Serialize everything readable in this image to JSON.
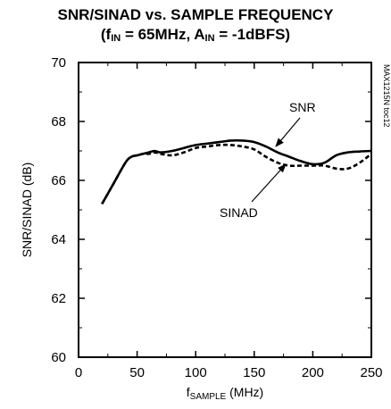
{
  "chart_data": {
    "type": "line",
    "title_line1": "SNR/SINAD vs. SAMPLE FREQUENCY",
    "title_line2": {
      "open": "(f",
      "fin_sub": "IN",
      "mid": " = 65MHz, A",
      "ain_sub": "IN",
      "close": " = -1dBFS)"
    },
    "xlabel": {
      "f": "f",
      "sub": "SAMPLE",
      "unit": " (MHz)"
    },
    "ylabel": "SNR/SINAD (dB)",
    "xlim": [
      0,
      250
    ],
    "ylim": [
      60,
      70
    ],
    "x_ticks": [
      "0",
      "50",
      "100",
      "150",
      "200",
      "250"
    ],
    "y_ticks": [
      "60",
      "62",
      "64",
      "66",
      "68",
      "70"
    ],
    "watermark": "MAX1215N toc12",
    "series": [
      {
        "name": "SNR",
        "style": "solid",
        "x": [
          20,
          30,
          40,
          45,
          50,
          55,
          60,
          65,
          70,
          80,
          90,
          100,
          110,
          120,
          130,
          140,
          150,
          160,
          170,
          180,
          190,
          200,
          210,
          220,
          230,
          240,
          250
        ],
        "y": [
          65.2,
          65.9,
          66.6,
          66.8,
          66.85,
          66.9,
          66.95,
          67.0,
          66.95,
          67.0,
          67.1,
          67.2,
          67.25,
          67.3,
          67.35,
          67.35,
          67.3,
          67.15,
          66.95,
          66.8,
          66.65,
          66.55,
          66.6,
          66.85,
          66.95,
          66.98,
          67.0
        ]
      },
      {
        "name": "SINAD",
        "style": "dashed",
        "x": [
          20,
          30,
          40,
          45,
          50,
          55,
          60,
          65,
          70,
          80,
          90,
          100,
          110,
          120,
          130,
          140,
          150,
          160,
          170,
          180,
          190,
          200,
          210,
          220,
          230,
          240,
          250
        ],
        "y": [
          65.2,
          65.9,
          66.6,
          66.8,
          66.85,
          66.9,
          66.9,
          66.95,
          66.9,
          66.85,
          66.95,
          67.1,
          67.15,
          67.2,
          67.2,
          67.15,
          67.05,
          66.8,
          66.6,
          66.5,
          66.5,
          66.5,
          66.5,
          66.4,
          66.4,
          66.6,
          66.9
        ]
      }
    ],
    "annotations": [
      {
        "text": "SNR",
        "arrow_to": {
          "x": 168,
          "y": 66.95
        }
      },
      {
        "text": "SINAD",
        "arrow_to": {
          "x": 178,
          "y": 66.6
        }
      }
    ],
    "grid": false,
    "legend": "none"
  }
}
